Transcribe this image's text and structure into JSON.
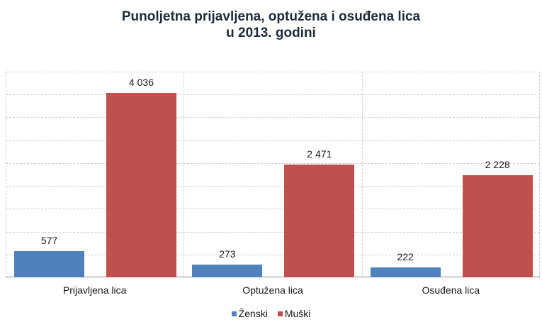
{
  "title": {
    "line1": "Punoljetna prijavljena, optužena i osuđena lica",
    "line2": "u 2013. godini"
  },
  "colors": {
    "zenski": "#4f81bd",
    "muski": "#c0504d"
  },
  "legend": [
    {
      "label": "Ženski",
      "color": "#4f81bd"
    },
    {
      "label": "Muški",
      "color": "#c0504d"
    }
  ],
  "categories": [
    "Prijavljena lica",
    "Optužena lica",
    "Osuđena lica"
  ],
  "labels": {
    "zenski": [
      "577",
      "273",
      "222"
    ],
    "muski": [
      "4 036",
      "2 471",
      "2 228"
    ]
  },
  "chart_data": {
    "type": "bar",
    "title": "Punoljetna prijavljena, optužena i osuđena lica u 2013. godini",
    "xlabel": "",
    "ylabel": "",
    "categories": [
      "Prijavljena lica",
      "Optužena lica",
      "Osuđena lica"
    ],
    "series": [
      {
        "name": "Ženski",
        "color": "#4f81bd",
        "values": [
          577,
          273,
          222
        ]
      },
      {
        "name": "Muški",
        "color": "#c0504d",
        "values": [
          4036,
          2471,
          2228
        ]
      }
    ],
    "ylim": [
      0,
      4500
    ],
    "y_tick_step": 500,
    "y_axis_visible": false,
    "grid": true,
    "data_labels": true,
    "legend_position": "bottom"
  }
}
